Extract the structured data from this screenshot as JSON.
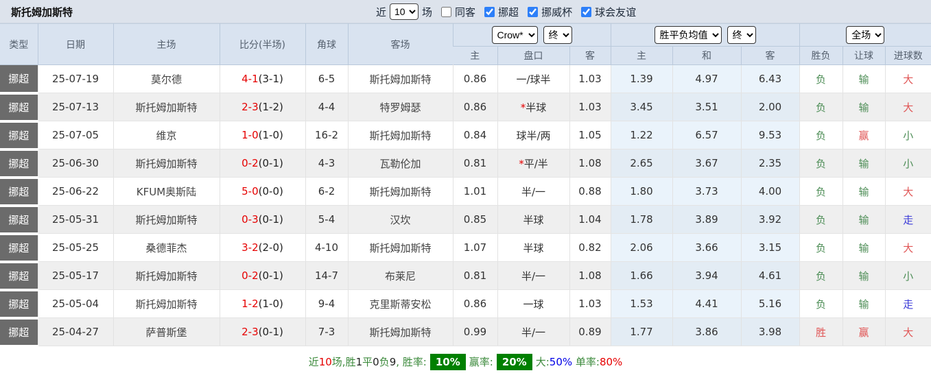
{
  "title": "斯托姆加斯特",
  "colors": {
    "topbar_bg": "#dde3ec",
    "header_bg": "#d9e3f0",
    "type_cell_bg": "#6b6b6b",
    "stripe": "#efefef",
    "odds_tint": "#eaf3fb",
    "team_green": "#3fa046",
    "score_red": "#e60000",
    "result_green": "#4e8e57",
    "result_red": "#e05555",
    "result_blue": "#3c3cd8",
    "badge_green": "#008000"
  },
  "controls": {
    "recent_label": "近",
    "recent_value": "10",
    "matches_label": "场",
    "same_opponent": {
      "label": "同客",
      "checked": false
    },
    "leagues": [
      {
        "label": "挪超",
        "checked": true,
        "checked_attr": "checked"
      },
      {
        "label": "挪威杯",
        "checked": true,
        "checked_attr": "checked"
      },
      {
        "label": "球会友谊",
        "checked": true,
        "checked_attr": "checked"
      }
    ]
  },
  "header": {
    "static_columns": [
      "类型",
      "日期",
      "主场",
      "比分(半场)",
      "角球",
      "客场"
    ],
    "handicap_company_select": "Crow*",
    "handicap_time_select": "终",
    "odds_type_select": "胜平负均值",
    "odds_time_select": "终",
    "scope_select": "全场",
    "sub_columns": [
      "主",
      "盘口",
      "客",
      "主",
      "和",
      "客",
      "胜负",
      "让球",
      "进球数"
    ]
  },
  "rows": [
    {
      "type": "挪超",
      "date": "25-07-19",
      "home": "莫尔德",
      "home_class": "",
      "score_ft": "4-1",
      "score_ht": "(3-1)",
      "corner": "6-5",
      "away": "斯托姆加斯特",
      "away_class": "team-green",
      "let_home": "0.86",
      "handicap_star": "",
      "handicap": "一/球半",
      "let_away": "1.03",
      "win": "1.39",
      "draw": "4.97",
      "lose": "6.43",
      "result": "负",
      "result_class": "c-green",
      "let_result": "输",
      "let_result_class": "c-green",
      "goals": "大",
      "goals_class": "c-red"
    },
    {
      "type": "挪超",
      "date": "25-07-13",
      "home": "斯托姆加斯特",
      "home_class": "team-green",
      "score_ft": "2-3",
      "score_ht": "(1-2)",
      "corner": "4-4",
      "away": "特罗姆瑟",
      "away_class": "",
      "let_home": "0.86",
      "handicap_star": "*",
      "handicap": "半球",
      "let_away": "1.03",
      "win": "3.45",
      "draw": "3.51",
      "lose": "2.00",
      "result": "负",
      "result_class": "c-green",
      "let_result": "输",
      "let_result_class": "c-green",
      "goals": "大",
      "goals_class": "c-red"
    },
    {
      "type": "挪超",
      "date": "25-07-05",
      "home": "维京",
      "home_class": "",
      "score_ft": "1-0",
      "score_ht": "(1-0)",
      "corner": "16-2",
      "away": "斯托姆加斯特",
      "away_class": "team-green",
      "let_home": "0.84",
      "handicap_star": "",
      "handicap": "球半/两",
      "let_away": "1.05",
      "win": "1.22",
      "draw": "6.57",
      "lose": "9.53",
      "result": "负",
      "result_class": "c-green",
      "let_result": "赢",
      "let_result_class": "c-red",
      "goals": "小",
      "goals_class": "c-green"
    },
    {
      "type": "挪超",
      "date": "25-06-30",
      "home": "斯托姆加斯特",
      "home_class": "team-green",
      "score_ft": "0-2",
      "score_ht": "(0-1)",
      "corner": "4-3",
      "away": "瓦勒伦加",
      "away_class": "",
      "let_home": "0.81",
      "handicap_star": "*",
      "handicap": "平/半",
      "let_away": "1.08",
      "win": "2.65",
      "draw": "3.67",
      "lose": "2.35",
      "result": "负",
      "result_class": "c-green",
      "let_result": "输",
      "let_result_class": "c-green",
      "goals": "小",
      "goals_class": "c-green"
    },
    {
      "type": "挪超",
      "date": "25-06-22",
      "home": "KFUM奥斯陆",
      "home_class": "",
      "score_ft": "5-0",
      "score_ht": "(0-0)",
      "corner": "6-2",
      "away": "斯托姆加斯特",
      "away_class": "team-green",
      "let_home": "1.01",
      "handicap_star": "",
      "handicap": "半/一",
      "let_away": "0.88",
      "win": "1.80",
      "draw": "3.73",
      "lose": "4.00",
      "result": "负",
      "result_class": "c-green",
      "let_result": "输",
      "let_result_class": "c-green",
      "goals": "大",
      "goals_class": "c-red"
    },
    {
      "type": "挪超",
      "date": "25-05-31",
      "home": "斯托姆加斯特",
      "home_class": "team-green",
      "score_ft": "0-3",
      "score_ht": "(0-1)",
      "corner": "5-4",
      "away": "汉坎",
      "away_class": "",
      "let_home": "0.85",
      "handicap_star": "",
      "handicap": "半球",
      "let_away": "1.04",
      "win": "1.78",
      "draw": "3.89",
      "lose": "3.92",
      "result": "负",
      "result_class": "c-green",
      "let_result": "输",
      "let_result_class": "c-green",
      "goals": "走",
      "goals_class": "c-blue"
    },
    {
      "type": "挪超",
      "date": "25-05-25",
      "home": "桑德菲杰",
      "home_class": "",
      "score_ft": "3-2",
      "score_ht": "(2-0)",
      "corner": "4-10",
      "away": "斯托姆加斯特",
      "away_class": "team-green",
      "let_home": "1.07",
      "handicap_star": "",
      "handicap": "半球",
      "let_away": "0.82",
      "win": "2.06",
      "draw": "3.66",
      "lose": "3.15",
      "result": "负",
      "result_class": "c-green",
      "let_result": "输",
      "let_result_class": "c-green",
      "goals": "大",
      "goals_class": "c-red"
    },
    {
      "type": "挪超",
      "date": "25-05-17",
      "home": "斯托姆加斯特",
      "home_class": "team-green",
      "score_ft": "0-2",
      "score_ht": "(0-1)",
      "corner": "14-7",
      "away": "布莱尼",
      "away_class": "",
      "let_home": "0.81",
      "handicap_star": "",
      "handicap": "半/一",
      "let_away": "1.08",
      "win": "1.66",
      "draw": "3.94",
      "lose": "4.61",
      "result": "负",
      "result_class": "c-green",
      "let_result": "输",
      "let_result_class": "c-green",
      "goals": "小",
      "goals_class": "c-green"
    },
    {
      "type": "挪超",
      "date": "25-05-04",
      "home": "斯托姆加斯特",
      "home_class": "team-green",
      "score_ft": "1-2",
      "score_ht": "(1-0)",
      "corner": "9-4",
      "away": "克里斯蒂安松",
      "away_class": "",
      "let_home": "0.86",
      "handicap_star": "",
      "handicap": "一球",
      "let_away": "1.03",
      "win": "1.53",
      "draw": "4.41",
      "lose": "5.16",
      "result": "负",
      "result_class": "c-green",
      "let_result": "输",
      "let_result_class": "c-green",
      "goals": "走",
      "goals_class": "c-blue"
    },
    {
      "type": "挪超",
      "date": "25-04-27",
      "home": "萨普斯堡",
      "home_class": "",
      "score_ft": "2-3",
      "score_ht": "(0-1)",
      "corner": "7-3",
      "away": "斯托姆加斯特",
      "away_class": "team-green",
      "let_home": "0.99",
      "handicap_star": "",
      "handicap": "半/一",
      "let_away": "0.89",
      "win": "1.77",
      "draw": "3.86",
      "lose": "3.98",
      "result": "胜",
      "result_class": "c-red",
      "let_result": "赢",
      "let_result_class": "c-red",
      "goals": "大",
      "goals_class": "c-red"
    }
  ],
  "footer": {
    "left_segments": [
      {
        "t": "近",
        "c": "seg-green"
      },
      {
        "t": "10",
        "c": "seg-red"
      },
      {
        "t": "场,胜",
        "c": "seg-green"
      },
      {
        "t": "1",
        "c": "seg-dark"
      },
      {
        "t": "平",
        "c": "seg-green"
      },
      {
        "t": "0",
        "c": "seg-dark"
      },
      {
        "t": "负",
        "c": "seg-green"
      },
      {
        "t": "9",
        "c": "seg-dark"
      },
      {
        "t": ", 胜率:",
        "c": "seg-green"
      }
    ],
    "win_badge": "10%",
    "mid_segments": [
      {
        "t": "赢率:",
        "c": "seg-green"
      }
    ],
    "rate_badge": "20%",
    "right_segments": [
      {
        "t": "大:",
        "c": "seg-green"
      },
      {
        "t": "50%",
        "c": "seg-blue"
      },
      {
        "t": " 单率:",
        "c": "seg-green"
      },
      {
        "t": "80%",
        "c": "seg-red"
      }
    ]
  }
}
